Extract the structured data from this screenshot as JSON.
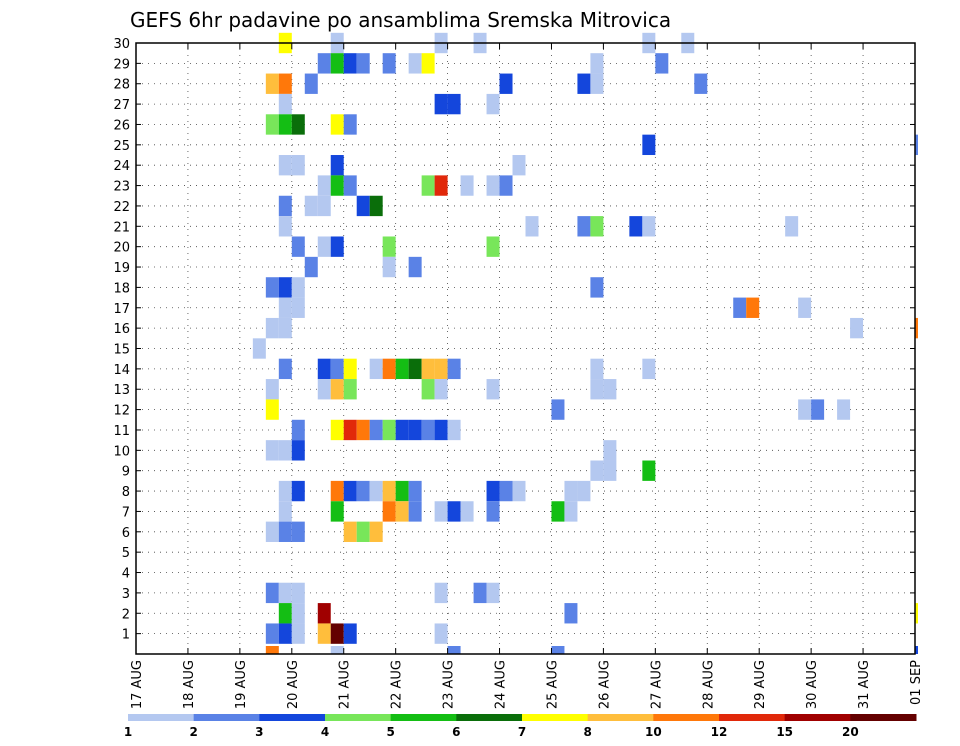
{
  "chart_data": {
    "type": "heatmap",
    "title": "GEFS 6hr padavine po ansamblima Sremska Mitrovica",
    "xlabel": "",
    "ylabel": "",
    "x_tick_labels": [
      "17 AUG",
      "18 AUG",
      "19 AUG",
      "20 AUG",
      "21 AUG",
      "22 AUG",
      "23 AUG",
      "24 AUG",
      "25 AUG",
      "26 AUG",
      "27 AUG",
      "28 AUG",
      "29 AUG",
      "30 AUG",
      "31 AUG",
      "01 SEP"
    ],
    "y_tick_labels": [
      "1",
      "2",
      "3",
      "4",
      "5",
      "6",
      "7",
      "8",
      "9",
      "10",
      "11",
      "12",
      "13",
      "14",
      "15",
      "16",
      "17",
      "18",
      "19",
      "20",
      "21",
      "22",
      "23",
      "24",
      "25",
      "26",
      "27",
      "28",
      "29",
      "30"
    ],
    "x_range_days": [
      0,
      15
    ],
    "y_range": [
      0,
      30
    ],
    "grid": true,
    "colorbar": {
      "thresholds": [
        "1",
        "2",
        "3",
        "4",
        "5",
        "6",
        "7",
        "8",
        "10",
        "12",
        "15",
        "20"
      ],
      "colors": [
        "#b4c8f0",
        "#5a82e6",
        "#1446dc",
        "#78e65a",
        "#14be14",
        "#0a6e0a",
        "#ffff00",
        "#ffbe3c",
        "#ff780a",
        "#e1280a",
        "#a00000",
        "#640000"
      ]
    },
    "cells": [
      [
        30,
        2.75,
        6
      ],
      [
        30,
        3.75,
        0
      ],
      [
        30,
        5.75,
        0
      ],
      [
        30,
        6.5,
        0
      ],
      [
        30,
        9.75,
        0
      ],
      [
        30,
        10.5,
        0
      ],
      [
        29,
        3.5,
        1
      ],
      [
        29,
        3.75,
        4
      ],
      [
        29,
        4,
        2
      ],
      [
        29,
        4.25,
        1
      ],
      [
        29,
        4.75,
        1
      ],
      [
        29,
        5.25,
        0
      ],
      [
        29,
        5.5,
        6
      ],
      [
        29,
        8.75,
        0
      ],
      [
        29,
        10,
        1
      ],
      [
        28,
        2.5,
        7
      ],
      [
        28,
        2.75,
        8
      ],
      [
        28,
        3.25,
        1
      ],
      [
        28,
        7,
        2
      ],
      [
        28,
        8.5,
        2
      ],
      [
        28,
        8.75,
        0
      ],
      [
        28,
        10.75,
        1
      ],
      [
        27,
        2.75,
        0
      ],
      [
        27,
        5.75,
        2
      ],
      [
        27,
        6,
        2
      ],
      [
        27,
        6.75,
        0
      ],
      [
        26,
        2.5,
        3
      ],
      [
        26,
        2.75,
        4
      ],
      [
        26,
        3,
        5
      ],
      [
        26,
        3.75,
        6
      ],
      [
        26,
        4,
        1
      ],
      [
        25,
        9.75,
        2
      ],
      [
        25,
        15,
        1
      ],
      [
        24,
        2.75,
        0
      ],
      [
        24,
        3,
        0
      ],
      [
        24,
        3.75,
        2
      ],
      [
        24,
        7.25,
        0
      ],
      [
        23,
        3.5,
        0
      ],
      [
        23,
        3.75,
        4
      ],
      [
        23,
        4,
        1
      ],
      [
        23,
        5.5,
        3
      ],
      [
        23,
        5.75,
        9
      ],
      [
        23,
        6.25,
        0
      ],
      [
        23,
        6.75,
        0
      ],
      [
        23,
        7,
        1
      ],
      [
        22,
        2.75,
        1
      ],
      [
        22,
        3.25,
        0
      ],
      [
        22,
        3.5,
        0
      ],
      [
        22,
        4.25,
        2
      ],
      [
        22,
        4.5,
        5
      ],
      [
        21,
        2.75,
        0
      ],
      [
        21,
        7.5,
        0
      ],
      [
        21,
        8.5,
        1
      ],
      [
        21,
        8.75,
        3
      ],
      [
        21,
        9.5,
        2
      ],
      [
        21,
        9.75,
        0
      ],
      [
        21,
        12.5,
        0
      ],
      [
        20,
        3,
        1
      ],
      [
        20,
        3.5,
        0
      ],
      [
        20,
        3.75,
        2
      ],
      [
        20,
        4.75,
        3
      ],
      [
        20,
        6.75,
        3
      ],
      [
        19,
        3.25,
        1
      ],
      [
        19,
        4.75,
        0
      ],
      [
        19,
        5.25,
        1
      ],
      [
        18,
        2.5,
        1
      ],
      [
        18,
        2.75,
        2
      ],
      [
        18,
        3,
        0
      ],
      [
        18,
        8.75,
        1
      ],
      [
        17,
        2.75,
        0
      ],
      [
        17,
        3,
        0
      ],
      [
        17,
        11.5,
        1
      ],
      [
        17,
        11.75,
        8
      ],
      [
        17,
        12.75,
        0
      ],
      [
        16,
        2.5,
        0
      ],
      [
        16,
        2.75,
        0
      ],
      [
        16,
        13.75,
        0
      ],
      [
        16,
        15,
        8
      ],
      [
        15,
        2.25,
        0
      ],
      [
        14,
        2.75,
        1
      ],
      [
        14,
        3.5,
        2
      ],
      [
        14,
        3.75,
        1
      ],
      [
        14,
        4,
        6
      ],
      [
        14,
        4.5,
        0
      ],
      [
        14,
        4.75,
        8
      ],
      [
        14,
        5,
        4
      ],
      [
        14,
        5.25,
        5
      ],
      [
        14,
        5.5,
        7
      ],
      [
        14,
        5.75,
        7
      ],
      [
        14,
        6,
        1
      ],
      [
        14,
        8.75,
        0
      ],
      [
        14,
        9.75,
        0
      ],
      [
        13,
        2.5,
        0
      ],
      [
        13,
        3.5,
        0
      ],
      [
        13,
        3.75,
        7
      ],
      [
        13,
        4,
        3
      ],
      [
        13,
        5.5,
        3
      ],
      [
        13,
        5.75,
        0
      ],
      [
        13,
        6.75,
        0
      ],
      [
        13,
        8.75,
        0
      ],
      [
        13,
        9,
        0
      ],
      [
        12,
        2.5,
        6
      ],
      [
        12,
        8,
        1
      ],
      [
        12,
        12.75,
        0
      ],
      [
        12,
        13,
        1
      ],
      [
        12,
        13.5,
        0
      ],
      [
        11,
        3,
        1
      ],
      [
        11,
        3.75,
        6
      ],
      [
        11,
        4,
        9
      ],
      [
        11,
        4.25,
        8
      ],
      [
        11,
        4.5,
        1
      ],
      [
        11,
        4.75,
        3
      ],
      [
        11,
        5,
        2
      ],
      [
        11,
        5.25,
        2
      ],
      [
        11,
        5.5,
        1
      ],
      [
        11,
        5.75,
        2
      ],
      [
        11,
        6,
        0
      ],
      [
        10,
        2.5,
        0
      ],
      [
        10,
        2.75,
        0
      ],
      [
        10,
        3,
        2
      ],
      [
        10,
        9,
        0
      ],
      [
        9,
        8.75,
        0
      ],
      [
        9,
        9,
        0
      ],
      [
        9,
        9.75,
        4
      ],
      [
        8,
        2.75,
        0
      ],
      [
        8,
        3,
        2
      ],
      [
        8,
        3.75,
        8
      ],
      [
        8,
        4,
        2
      ],
      [
        8,
        4.25,
        1
      ],
      [
        8,
        4.5,
        0
      ],
      [
        8,
        4.75,
        7
      ],
      [
        8,
        5,
        4
      ],
      [
        8,
        5.25,
        1
      ],
      [
        8,
        6.75,
        2
      ],
      [
        8,
        7,
        1
      ],
      [
        8,
        7.25,
        0
      ],
      [
        8,
        8.25,
        0
      ],
      [
        8,
        8.5,
        0
      ],
      [
        7,
        2.75,
        0
      ],
      [
        7,
        3.75,
        4
      ],
      [
        7,
        4.75,
        8
      ],
      [
        7,
        5,
        7
      ],
      [
        7,
        5.25,
        1
      ],
      [
        7,
        5.75,
        0
      ],
      [
        7,
        6,
        2
      ],
      [
        7,
        6.25,
        0
      ],
      [
        7,
        6.75,
        1
      ],
      [
        7,
        8,
        4
      ],
      [
        7,
        8.25,
        0
      ],
      [
        6,
        2.5,
        0
      ],
      [
        6,
        2.75,
        1
      ],
      [
        6,
        3,
        1
      ],
      [
        6,
        4,
        7
      ],
      [
        6,
        4.25,
        3
      ],
      [
        6,
        4.5,
        7
      ],
      [
        3,
        2.5,
        1
      ],
      [
        3,
        2.75,
        0
      ],
      [
        3,
        3,
        0
      ],
      [
        3,
        5.75,
        0
      ],
      [
        3,
        6.5,
        1
      ],
      [
        3,
        6.75,
        0
      ],
      [
        2,
        2.75,
        4
      ],
      [
        2,
        3,
        0
      ],
      [
        2,
        3.5,
        10
      ],
      [
        2,
        8.25,
        1
      ],
      [
        2,
        15,
        6
      ],
      [
        1,
        2.5,
        1
      ],
      [
        1,
        2.75,
        2
      ],
      [
        1,
        3,
        0
      ],
      [
        1,
        3.5,
        7
      ],
      [
        1,
        3.75,
        11
      ],
      [
        1,
        4,
        2
      ],
      [
        1,
        5.75,
        0
      ],
      [
        0,
        2.5,
        8
      ],
      [
        0,
        3.75,
        0
      ],
      [
        0,
        6,
        1
      ],
      [
        0,
        8,
        1
      ],
      [
        0,
        15,
        2
      ]
    ]
  }
}
